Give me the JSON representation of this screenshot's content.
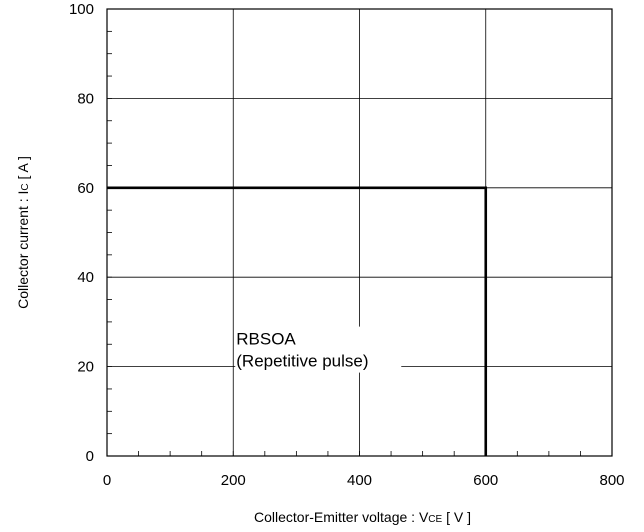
{
  "chart_data": {
    "type": "line",
    "xlabel": {
      "main": "Collector-Emitter voltage  :  V",
      "sub": "CE",
      "unit": " [ V ]"
    },
    "ylabel": {
      "main": "Collector current : I",
      "sub": "C",
      "unit": " [ A ]"
    },
    "xlim": [
      0,
      800
    ],
    "ylim": [
      0,
      100
    ],
    "xticks": [
      0,
      200,
      400,
      600,
      800
    ],
    "yticks": [
      0,
      20,
      40,
      60,
      80,
      100
    ],
    "grid": true,
    "series": [
      {
        "x": [
          0,
          600,
          600
        ],
        "y": [
          60,
          60,
          0
        ]
      }
    ],
    "annotations": [
      {
        "lines": [
          "RBSOA",
          "(Repetitive pulse)"
        ],
        "x": 200,
        "y": 20
      }
    ]
  }
}
